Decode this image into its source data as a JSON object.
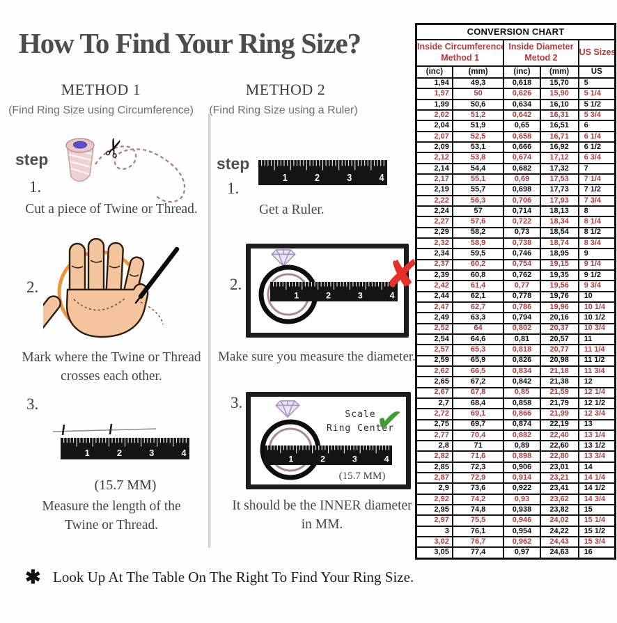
{
  "title": "How To Find Your Ring Size?",
  "method1": {
    "heading": "METHOD 1",
    "subtitle": "(Find Ring Size using Circumference)",
    "step_label": "step",
    "step1_num": "1.",
    "step1_caption": "Cut a piece of Twine or Thread.",
    "step2_num": "2.",
    "step2_caption_line1": "Mark where the Twine or Thread",
    "step2_caption_line2": "crosses each other.",
    "step3_num": "3.",
    "step3_measure": "(15.7 MM)",
    "step3_caption_line1": "Measure the length of the",
    "step3_caption_line2": "Twine or Thread."
  },
  "method2": {
    "heading": "METHOD 2",
    "subtitle": "(Find Ring Size using a Ruler)",
    "step_label": "step",
    "step1_num": "1.",
    "step1_caption": "Get a Ruler.",
    "step2_num": "2.",
    "step2_caption": "Make sure you measure the diameter.",
    "step3_num": "3.",
    "scale_line1": "Scale",
    "scale_line2": "Ring Center",
    "step3_measure": "(15.7 MM)",
    "step3_caption_line1": "It should be the INNER diameter",
    "step3_caption_line2": "in MM."
  },
  "ruler_numbers": [
    "1",
    "2",
    "3",
    "4"
  ],
  "footer": {
    "mark": "✱",
    "text": "Look Up At The Table On The Right To Find Your Ring Size."
  },
  "colors": {
    "table_red": "#b23c3c",
    "check_green": "#3da02e",
    "x_red": "#e43026",
    "circle_orange": "#e9953f",
    "ruler_black": "#141414"
  },
  "conversion_chart": {
    "title": "CONVERSION CHART",
    "group1_line1": "Inside Circumference",
    "group1_line2": "Method 1",
    "group2_line1": "Inside Diameter",
    "group2_line2": "Metod 2",
    "group3": "US Sizes",
    "subheaders": [
      "(inc)",
      "(mm)",
      "(inc)",
      "(mm)",
      "US"
    ],
    "rows": [
      [
        "1,94",
        "49,3",
        "0,618",
        "15,70",
        "5"
      ],
      [
        "1,97",
        "50",
        "0,626",
        "15,90",
        "5 1/4"
      ],
      [
        "1,99",
        "50,6",
        "0,634",
        "16,10",
        "5 1/2"
      ],
      [
        "2,02",
        "51,2",
        "0,642",
        "16,31",
        "5 3/4"
      ],
      [
        "2,04",
        "51,9",
        "0,65",
        "16,51",
        "6"
      ],
      [
        "2,07",
        "52,5",
        "0,658",
        "16,71",
        "6 1/4"
      ],
      [
        "2,09",
        "53,1",
        "0,666",
        "16,92",
        "6 1/2"
      ],
      [
        "2,12",
        "53,8",
        "0,674",
        "17,12",
        "6 3/4"
      ],
      [
        "2,14",
        "54,4",
        "0,682",
        "17,32",
        "7"
      ],
      [
        "2,17",
        "55,1",
        "0,69",
        "17,53",
        "7 1/4"
      ],
      [
        "2,19",
        "55,7",
        "0,698",
        "17,73",
        "7 1/2"
      ],
      [
        "2,22",
        "56,3",
        "0,706",
        "17,93",
        "7 3/4"
      ],
      [
        "2,24",
        "57",
        "0,714",
        "18,13",
        "8"
      ],
      [
        "2,27",
        "57,6",
        "0,722",
        "18,34",
        "8 1/4"
      ],
      [
        "2,29",
        "58,2",
        "0,73",
        "18,54",
        "8 1/2"
      ],
      [
        "2,32",
        "58,9",
        "0,738",
        "18,74",
        "8 3/4"
      ],
      [
        "2,34",
        "59,5",
        "0,746",
        "18,95",
        "9"
      ],
      [
        "2,37",
        "60,2",
        "0,754",
        "19,15",
        "9 1/4"
      ],
      [
        "2,39",
        "60,8",
        "0,762",
        "19,35",
        "9 1/2"
      ],
      [
        "2,42",
        "61,4",
        "0,77",
        "19,56",
        "9 3/4"
      ],
      [
        "2,44",
        "62,1",
        "0,778",
        "19,76",
        "10"
      ],
      [
        "2,47",
        "62,7",
        "0,786",
        "19,96",
        "10 1/4"
      ],
      [
        "2,49",
        "63,3",
        "0,794",
        "20,16",
        "10 1/2"
      ],
      [
        "2,52",
        "64",
        "0,802",
        "20,37",
        "10 3/4"
      ],
      [
        "2,54",
        "64,6",
        "0,81",
        "20,57",
        "11"
      ],
      [
        "2,57",
        "65,3",
        "0,818",
        "20,77",
        "11 1/4"
      ],
      [
        "2,59",
        "65,9",
        "0,826",
        "20,98",
        "11 1/2"
      ],
      [
        "2,62",
        "66,5",
        "0,834",
        "21,18",
        "11 3/4"
      ],
      [
        "2,65",
        "67,2",
        "0,842",
        "21,38",
        "12"
      ],
      [
        "2,67",
        "67,8",
        "0,85",
        "21,59",
        "12 1/4"
      ],
      [
        "2,7",
        "68,4",
        "0,858",
        "21,79",
        "12 1/2"
      ],
      [
        "2,72",
        "69,1",
        "0,866",
        "21,99",
        "12 3/4"
      ],
      [
        "2,75",
        "69,7",
        "0,874",
        "22,19",
        "13"
      ],
      [
        "2,77",
        "70,4",
        "0,882",
        "22,40",
        "13 1/4"
      ],
      [
        "2,8",
        "71",
        "0,89",
        "22,60",
        "13 1/2"
      ],
      [
        "2,82",
        "71,6",
        "0,898",
        "22,80",
        "13 3/4"
      ],
      [
        "2,85",
        "72,3",
        "0,906",
        "23,01",
        "14"
      ],
      [
        "2,87",
        "72,9",
        "0,914",
        "23,21",
        "14 1/4"
      ],
      [
        "2,9",
        "73,6",
        "0,922",
        "23,41",
        "14 1/2"
      ],
      [
        "2,92",
        "74,2",
        "0,93",
        "23,62",
        "14 3/4"
      ],
      [
        "2,95",
        "74,8",
        "0,938",
        "23,82",
        "15"
      ],
      [
        "2,97",
        "75,5",
        "0,946",
        "24,02",
        "15 1/4"
      ],
      [
        "3",
        "76,1",
        "0,954",
        "24,22",
        "15 1/2"
      ],
      [
        "3,02",
        "76,7",
        "0,962",
        "24,43",
        "15 3/4"
      ],
      [
        "3,05",
        "77,4",
        "0,97",
        "24,63",
        "16"
      ]
    ]
  }
}
